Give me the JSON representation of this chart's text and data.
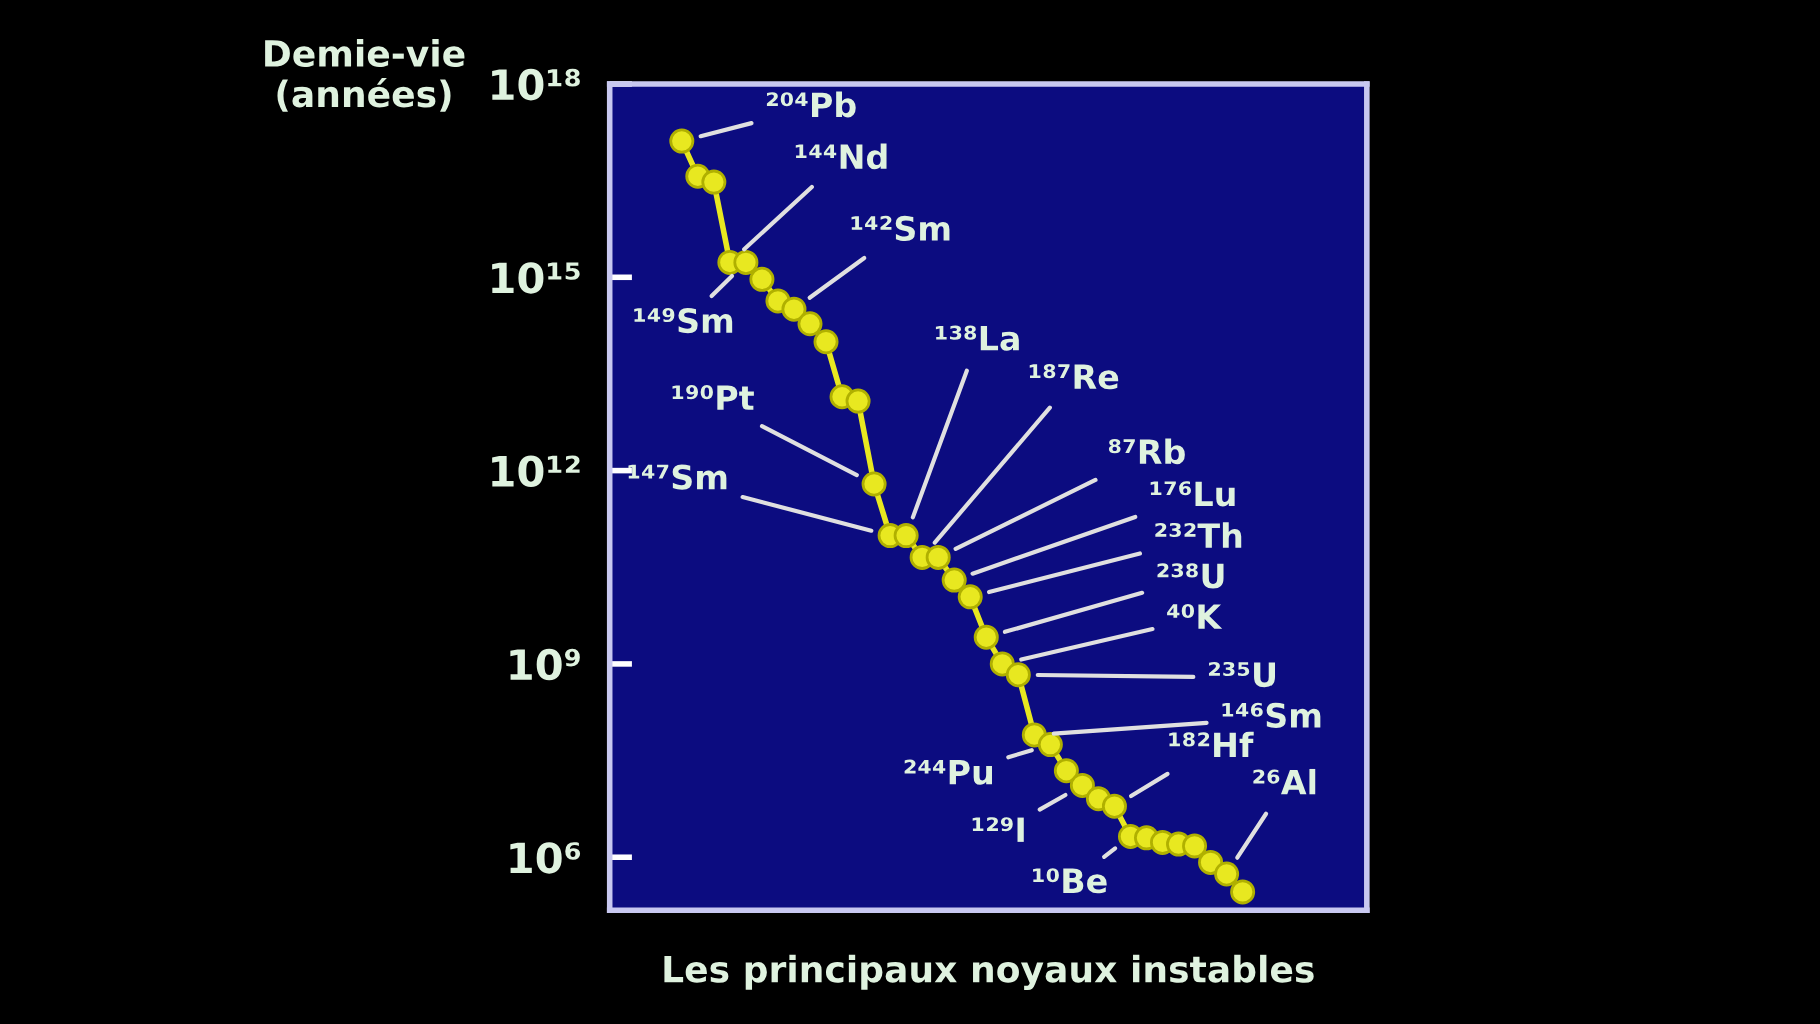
{
  "chart_data": {
    "type": "line",
    "xlabel": "Les principaux noyaux instables",
    "ylabel": "Demie-vie\n(années)",
    "categories": [
      null,
      null,
      null,
      null,
      null,
      null,
      null,
      null,
      null,
      null,
      null,
      null,
      null,
      null,
      null,
      null,
      null,
      null,
      null,
      null,
      null,
      null,
      null,
      null,
      null,
      null,
      null,
      null,
      null,
      null,
      null,
      null,
      null,
      null,
      null,
      null
    ],
    "series": [
      {
        "color": "#e8e820",
        "values": [
          1.3e+17,
          3.7e+16,
          3e+16,
          1700000000000000.0,
          1700000000000000.0,
          930000000000000.0,
          430000000000000.0,
          320000000000000.0,
          190000000000000.0,
          100000000000000.0,
          14000000000000.0,
          12000000000000.0,
          620000000000.0,
          98000000000.0,
          98000000000.0,
          45000000000.0,
          45000000000.0,
          20000000000.0,
          11000000000.0,
          2600000000.0,
          1000000000.0,
          680000000.0,
          79000000.0,
          56000000.0,
          22000000.0,
          13000000.0,
          8100000.0,
          6200000.0,
          2100000.0,
          2000000.0,
          1700000.0,
          1600000.0,
          1500000.0,
          830000.0,
          550000.0,
          290000.0
        ],
        "value_labels": [
          "²⁰⁴Pb",
          null,
          null,
          "¹⁴⁴Nd",
          "¹⁴⁹Sm",
          null,
          null,
          "¹⁴²Sm",
          null,
          null,
          null,
          null,
          "¹⁹⁰Pt",
          "¹⁴⁷Sm",
          "¹³⁸La",
          "¹⁸⁷Re",
          "⁸⁷Rb",
          "¹⁷⁶Lu",
          "²³²Th",
          "²³⁸U",
          "⁴⁰K",
          "²³⁵U",
          "¹⁴⁶Sm",
          "²⁴⁴Pu",
          null,
          "¹²⁹I",
          null,
          "¹⁸²Hf",
          "¹⁰Be",
          null,
          null,
          null,
          null,
          null,
          "²⁶Al",
          null
        ]
      }
    ],
    "log": "y",
    "ylim": [
      150000.0,
      1e+18
    ],
    "yticks": [
      {
        "value": 1000000.0,
        "label": "10⁶"
      },
      {
        "value": 1000000000.0,
        "label": "10⁹"
      },
      {
        "value": 1000000000000.0,
        "label": "10¹²"
      },
      {
        "value": 1000000000000000.0,
        "label": "10¹⁵"
      },
      {
        "value": 1e+18,
        "label": "10¹⁸"
      }
    ],
    "tick_labels": "y",
    "marker": "circle",
    "line_style": "solid",
    "grid": false,
    "legend": false
  }
}
